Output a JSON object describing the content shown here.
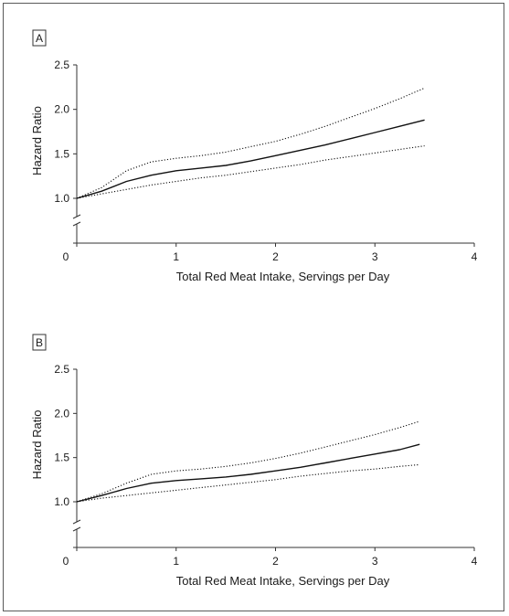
{
  "chart_data": [
    {
      "type": "line",
      "panel_label": "A",
      "title": "",
      "xlabel": "Total Red Meat Intake, Servings per Day",
      "ylabel": "Hazard Ratio",
      "xlim": [
        0,
        4
      ],
      "ylim": [
        1.0,
        2.5
      ],
      "axis_break_y": true,
      "x_ticks": [
        "0",
        "1",
        "2",
        "3",
        "4"
      ],
      "y_ticks": [
        "1.0",
        "1.5",
        "2.0",
        "2.5"
      ],
      "grid": false,
      "legend": "none",
      "series": [
        {
          "style": "solid",
          "x": [
            0.0,
            0.25,
            0.5,
            0.75,
            1.0,
            1.25,
            1.5,
            1.75,
            2.0,
            2.25,
            2.5,
            2.75,
            3.0,
            3.25,
            3.5
          ],
          "y": [
            1.0,
            1.08,
            1.19,
            1.26,
            1.31,
            1.34,
            1.37,
            1.42,
            1.48,
            1.54,
            1.6,
            1.67,
            1.74,
            1.81,
            1.88
          ]
        },
        {
          "style": "dotted",
          "x": [
            0.0,
            0.25,
            0.5,
            0.75,
            1.0,
            1.25,
            1.5,
            1.75,
            2.0,
            2.25,
            2.5,
            2.75,
            3.0,
            3.25,
            3.5
          ],
          "y": [
            1.0,
            1.12,
            1.31,
            1.41,
            1.45,
            1.48,
            1.52,
            1.58,
            1.64,
            1.72,
            1.81,
            1.91,
            2.01,
            2.12,
            2.24
          ]
        },
        {
          "style": "dotted",
          "x": [
            0.0,
            0.25,
            0.5,
            0.75,
            1.0,
            1.25,
            1.5,
            1.75,
            2.0,
            2.25,
            2.5,
            2.75,
            3.0,
            3.25,
            3.5
          ],
          "y": [
            1.0,
            1.05,
            1.1,
            1.15,
            1.19,
            1.23,
            1.26,
            1.3,
            1.34,
            1.38,
            1.43,
            1.47,
            1.51,
            1.55,
            1.59
          ]
        }
      ]
    },
    {
      "type": "line",
      "panel_label": "B",
      "title": "",
      "xlabel": "Total Red Meat Intake, Servings per Day",
      "ylabel": "Hazard Ratio",
      "xlim": [
        0,
        4
      ],
      "ylim": [
        1.0,
        2.5
      ],
      "axis_break_y": true,
      "x_ticks": [
        "0",
        "1",
        "2",
        "3",
        "4"
      ],
      "y_ticks": [
        "1.0",
        "1.5",
        "2.0",
        "2.5"
      ],
      "grid": false,
      "legend": "none",
      "series": [
        {
          "style": "solid",
          "x": [
            0.0,
            0.25,
            0.5,
            0.75,
            1.0,
            1.25,
            1.5,
            1.75,
            2.0,
            2.25,
            2.5,
            2.75,
            3.0,
            3.25,
            3.45
          ],
          "y": [
            1.0,
            1.07,
            1.15,
            1.21,
            1.24,
            1.26,
            1.28,
            1.31,
            1.35,
            1.39,
            1.44,
            1.49,
            1.54,
            1.59,
            1.65
          ]
        },
        {
          "style": "dotted",
          "x": [
            0.0,
            0.25,
            0.5,
            0.75,
            1.0,
            1.25,
            1.5,
            1.75,
            2.0,
            2.25,
            2.5,
            2.75,
            3.0,
            3.25,
            3.45
          ],
          "y": [
            1.0,
            1.09,
            1.21,
            1.31,
            1.35,
            1.37,
            1.4,
            1.44,
            1.49,
            1.55,
            1.62,
            1.69,
            1.76,
            1.84,
            1.91
          ]
        },
        {
          "style": "dotted",
          "x": [
            0.0,
            0.25,
            0.5,
            0.75,
            1.0,
            1.25,
            1.5,
            1.75,
            2.0,
            2.25,
            2.5,
            2.75,
            3.0,
            3.25,
            3.45
          ],
          "y": [
            1.0,
            1.04,
            1.07,
            1.1,
            1.13,
            1.16,
            1.19,
            1.22,
            1.25,
            1.29,
            1.32,
            1.35,
            1.37,
            1.4,
            1.42
          ]
        }
      ]
    }
  ]
}
